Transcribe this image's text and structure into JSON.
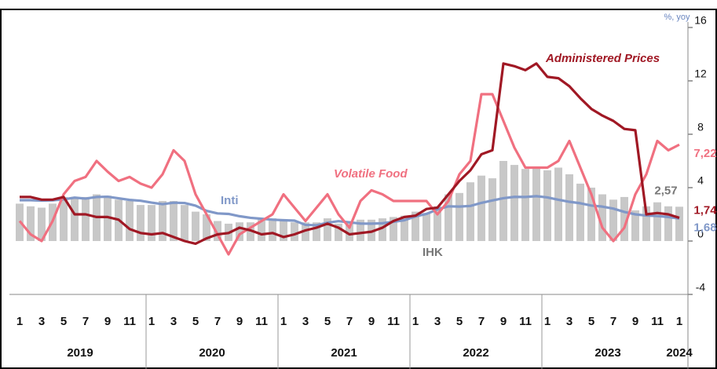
{
  "chart_data": {
    "type": "combo",
    "unit_label": "%, yoy",
    "categories": [
      "1",
      null,
      "3",
      null,
      "5",
      null,
      "7",
      null,
      "9",
      null,
      "11",
      null,
      "1",
      null,
      "3",
      null,
      "5",
      null,
      "7",
      null,
      "9",
      null,
      "11",
      null,
      "1",
      null,
      "3",
      null,
      "5",
      null,
      "7",
      null,
      "9",
      null,
      "11",
      null,
      "1",
      null,
      "3",
      null,
      "5",
      null,
      "7",
      null,
      "9",
      null,
      "11",
      null,
      "1",
      null,
      "3",
      null,
      "5",
      null,
      "7",
      null,
      "9",
      null,
      "11",
      null,
      "1"
    ],
    "year_labels": [
      "2019",
      "2020",
      "2021",
      "2022",
      "2023",
      "2024"
    ],
    "ylim": [
      -4,
      16
    ],
    "yticks": [
      -4,
      0,
      4,
      8,
      12,
      16
    ],
    "series": [
      {
        "name": "IHK",
        "type": "bar",
        "color": "#c8c8c8",
        "label_color": "#777777",
        "values": [
          2.8,
          2.6,
          2.5,
          2.8,
          3.3,
          3.3,
          3.3,
          3.5,
          3.4,
          3.1,
          3.0,
          2.7,
          2.7,
          3.0,
          3.0,
          2.7,
          2.2,
          2.0,
          1.5,
          1.3,
          1.4,
          1.4,
          1.6,
          1.7,
          1.6,
          1.4,
          1.4,
          1.4,
          1.7,
          1.3,
          1.5,
          1.6,
          1.6,
          1.7,
          1.8,
          1.9,
          2.2,
          2.1,
          2.6,
          3.5,
          3.6,
          4.4,
          4.9,
          4.7,
          6.0,
          5.7,
          5.4,
          5.5,
          5.3,
          5.5,
          5.0,
          4.3,
          4.0,
          3.5,
          3.1,
          3.3,
          2.3,
          2.6,
          2.9,
          2.6,
          2.57
        ],
        "value_labels": [
          null,
          null,
          null,
          null,
          null,
          null,
          null,
          null,
          null,
          null,
          null,
          null,
          null,
          null,
          null,
          null,
          null,
          null,
          null,
          null,
          null,
          null,
          null,
          null,
          null,
          null,
          null,
          null,
          null,
          null,
          null,
          null,
          null,
          null,
          null,
          null,
          null,
          null,
          null,
          null,
          null,
          null,
          null,
          null,
          null,
          null,
          null,
          null,
          null,
          null,
          null,
          null,
          null,
          null,
          null,
          null,
          null,
          null,
          null,
          null,
          "2,57"
        ]
      },
      {
        "name": "Inti",
        "type": "line",
        "color": "#8098c8",
        "values": [
          3.06,
          3.06,
          3.03,
          3.05,
          3.12,
          3.25,
          3.18,
          3.3,
          3.32,
          3.2,
          3.08,
          3.02,
          2.88,
          2.76,
          2.87,
          2.85,
          2.65,
          2.26,
          2.07,
          2.03,
          1.86,
          1.74,
          1.67,
          1.6,
          1.56,
          1.53,
          1.21,
          1.18,
          1.37,
          1.49,
          1.4,
          1.31,
          1.3,
          1.33,
          1.44,
          1.56,
          1.84,
          2.03,
          2.37,
          2.6,
          2.58,
          2.63,
          2.86,
          3.04,
          3.21,
          3.31,
          3.3,
          3.36,
          3.27,
          3.09,
          2.94,
          2.83,
          2.66,
          2.58,
          2.43,
          2.18,
          2.0,
          1.91,
          1.87,
          1.8,
          1.68
        ],
        "value_labels": [
          null,
          null,
          null,
          null,
          null,
          null,
          null,
          null,
          null,
          null,
          null,
          null,
          null,
          null,
          null,
          null,
          null,
          null,
          null,
          null,
          null,
          null,
          null,
          null,
          null,
          null,
          null,
          null,
          null,
          null,
          null,
          null,
          null,
          null,
          null,
          null,
          null,
          null,
          null,
          null,
          null,
          null,
          null,
          null,
          null,
          null,
          null,
          null,
          null,
          null,
          null,
          null,
          null,
          null,
          null,
          null,
          null,
          null,
          null,
          null,
          "1,68"
        ]
      },
      {
        "name": "Volatile Food",
        "type": "line",
        "color": "#f07080",
        "values": [
          1.5,
          0.5,
          0,
          1.5,
          3.5,
          4.5,
          4.8,
          6.0,
          5.2,
          4.5,
          4.8,
          4.3,
          4.0,
          5.0,
          6.8,
          6.0,
          3.5,
          2.0,
          0.5,
          -1.0,
          0.5,
          1.0,
          1.5,
          2.0,
          3.5,
          2.5,
          1.5,
          2.5,
          3.5,
          2.0,
          1.0,
          3.0,
          3.8,
          3.5,
          3.0,
          3.0,
          3.0,
          3.0,
          2.0,
          3.0,
          5.0,
          6.0,
          11.0,
          11.0,
          9.0,
          7.0,
          5.5,
          5.5,
          5.5,
          6.0,
          7.5,
          5.5,
          3.5,
          1.0,
          0.0,
          1.0,
          3.5,
          5.0,
          7.5,
          6.8,
          7.22
        ],
        "value_labels": [
          null,
          null,
          null,
          null,
          null,
          null,
          null,
          null,
          null,
          null,
          null,
          null,
          null,
          null,
          null,
          null,
          null,
          null,
          null,
          null,
          null,
          null,
          null,
          null,
          null,
          null,
          null,
          null,
          null,
          null,
          null,
          null,
          null,
          null,
          null,
          null,
          null,
          null,
          null,
          null,
          null,
          null,
          null,
          null,
          null,
          null,
          null,
          null,
          null,
          null,
          null,
          null,
          null,
          null,
          null,
          null,
          null,
          null,
          null,
          null,
          "7,22"
        ]
      },
      {
        "name": "Administered Prices",
        "type": "line",
        "color": "#a01824",
        "values": [
          3.3,
          3.3,
          3.1,
          3.1,
          3.3,
          2.0,
          2.0,
          1.8,
          1.8,
          1.6,
          0.9,
          0.6,
          0.5,
          0.6,
          0.3,
          0.0,
          -0.2,
          0.2,
          0.5,
          0.6,
          1.0,
          0.8,
          0.5,
          0.6,
          0.3,
          0.5,
          0.8,
          1.0,
          1.3,
          1.0,
          0.5,
          0.6,
          0.7,
          1.0,
          1.5,
          1.8,
          1.9,
          2.4,
          2.5,
          3.5,
          4.5,
          5.3,
          6.5,
          6.8,
          13.3,
          13.1,
          12.8,
          13.3,
          12.3,
          12.2,
          11.6,
          10.7,
          9.9,
          9.4,
          9.0,
          8.4,
          8.3,
          2.0,
          2.1,
          2.0,
          1.74
        ],
        "value_labels": [
          null,
          null,
          null,
          null,
          null,
          null,
          null,
          null,
          null,
          null,
          null,
          null,
          null,
          null,
          null,
          null,
          null,
          null,
          null,
          null,
          null,
          null,
          null,
          null,
          null,
          null,
          null,
          null,
          null,
          null,
          null,
          null,
          null,
          null,
          null,
          null,
          null,
          null,
          null,
          null,
          null,
          null,
          null,
          null,
          null,
          null,
          null,
          null,
          null,
          null,
          null,
          null,
          null,
          null,
          null,
          null,
          null,
          null,
          null,
          null,
          "1,74"
        ]
      }
    ]
  }
}
